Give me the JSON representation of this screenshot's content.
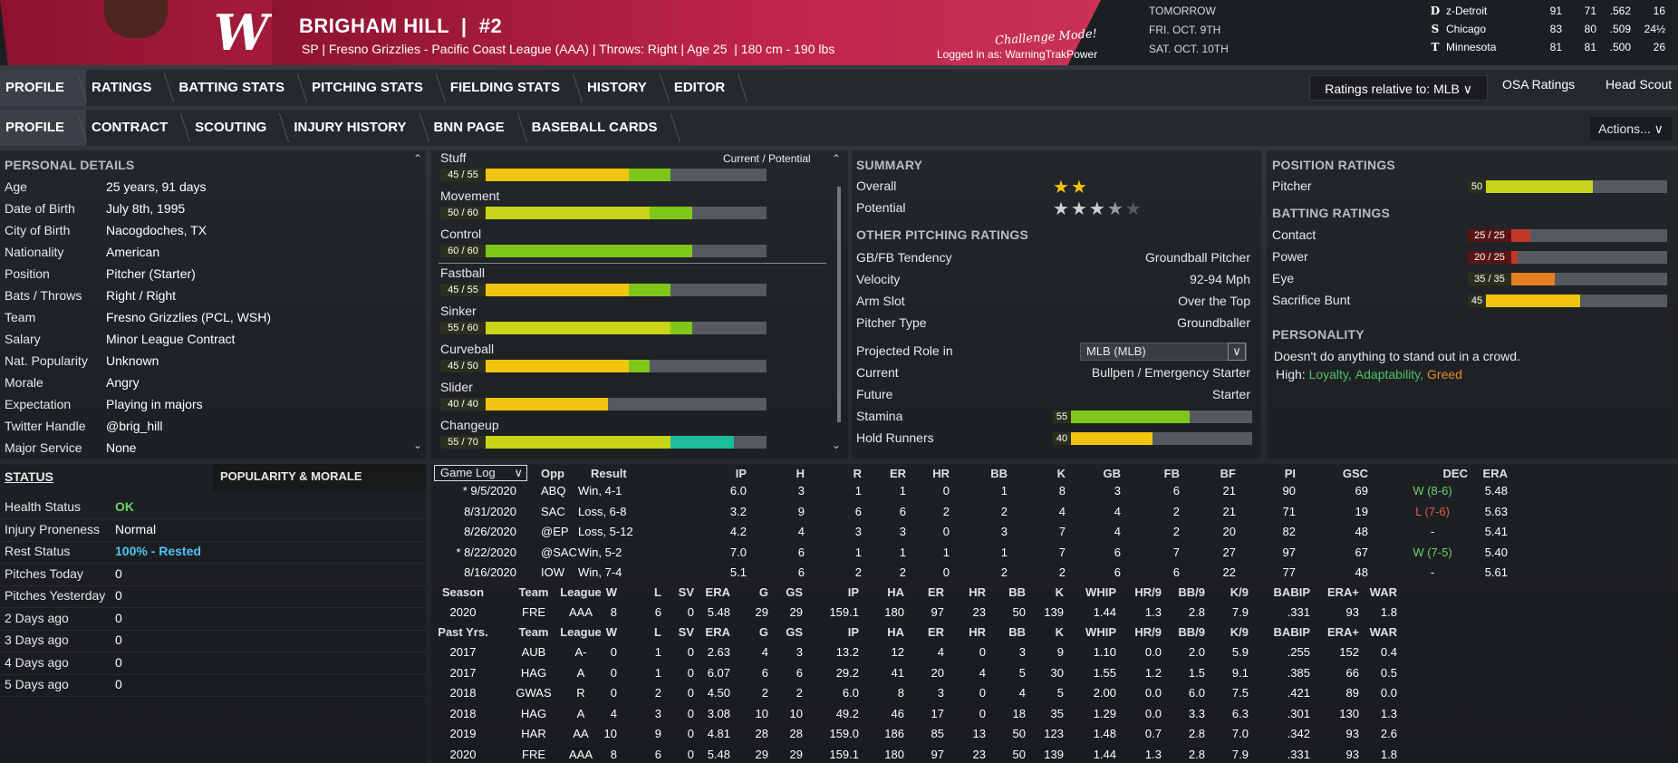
{
  "header": {
    "name": "BRIGHAM HILL  |  #2",
    "subtitle": "SP | Fresno Grizzlies - Pacific Coast League (AAA) | Throws: Right | Age 25  | 180 cm - 190 lbs",
    "challenge": "Challenge Mode!",
    "logged_in": "Logged in as: WarningTrakPower",
    "team_logo": "W",
    "dates": [
      "TOMORROW",
      "FRI. OCT. 9TH",
      "SAT. OCT. 10TH"
    ]
  },
  "standings": [
    {
      "icon": "D",
      "team": "z-Detroit",
      "w": "91",
      "l": "71",
      "pct": ".562",
      "gb": "16"
    },
    {
      "icon": "S",
      "team": "Chicago",
      "w": "83",
      "l": "80",
      "pct": ".509",
      "gb": "24½"
    },
    {
      "icon": "T",
      "team": "Minnesota",
      "w": "81",
      "l": "81",
      "pct": ".500",
      "gb": "26"
    }
  ],
  "nav1": [
    "PROFILE",
    "RATINGS",
    "BATTING STATS",
    "PITCHING STATS",
    "FIELDING STATS",
    "HISTORY",
    "EDITOR"
  ],
  "nav2": [
    "PROFILE",
    "CONTRACT",
    "SCOUTING",
    "INJURY HISTORY",
    "BNN PAGE",
    "BASEBALL CARDS"
  ],
  "ratings_relative": "Ratings relative to: MLB  ∨",
  "osa": "OSA Ratings",
  "head_scout": "Head Scout",
  "actions": "Actions...  ∨",
  "personal": {
    "title": "PERSONAL DETAILS",
    "rows": [
      [
        "Age",
        "25 years, 91 days"
      ],
      [
        "Date of Birth",
        "July 8th, 1995"
      ],
      [
        "City of Birth",
        "Nacogdoches, TX"
      ],
      [
        "Nationality",
        "American"
      ],
      [
        "Position",
        "Pitcher (Starter)"
      ],
      [
        "Bats / Throws",
        "Right / Right"
      ],
      [
        "Team",
        "Fresno Grizzlies (PCL, WSH)"
      ],
      [
        "Salary",
        "Minor League Contract"
      ],
      [
        "Nat. Popularity",
        "Unknown"
      ],
      [
        "Morale",
        "Angry"
      ],
      [
        "Expectation",
        "Playing in majors"
      ],
      [
        "Twitter Handle",
        "@brig_hill"
      ],
      [
        "Major Service",
        "None"
      ]
    ]
  },
  "pitches": {
    "header": "Current / Potential",
    "items": [
      {
        "name": "Stuff",
        "label": "45 / 55",
        "cur": 45,
        "pot": 55
      },
      {
        "name": "Movement",
        "label": "50 / 60",
        "cur": 50,
        "pot": 60
      },
      {
        "name": "Control",
        "label": "60 / 60",
        "cur": 60,
        "pot": 60
      },
      {
        "name": "Fastball",
        "label": "45 / 55",
        "cur": 45,
        "pot": 55
      },
      {
        "name": "Sinker",
        "label": "55 / 60",
        "cur": 55,
        "pot": 60
      },
      {
        "name": "Curveball",
        "label": "45 / 50",
        "cur": 45,
        "pot": 50
      },
      {
        "name": "Slider",
        "label": "40 / 40",
        "cur": 40,
        "pot": 40
      },
      {
        "name": "Changeup",
        "label": "55 / 70",
        "cur": 55,
        "pot": 70
      }
    ]
  },
  "summary": {
    "title": "SUMMARY",
    "overall_label": "Overall",
    "overall_stars": 2,
    "potential_label": "Potential",
    "potential_stars": 3.5,
    "other_title": "OTHER PITCHING RATINGS",
    "rows": [
      [
        "GB/FB Tendency",
        "Groundball Pitcher"
      ],
      [
        "Velocity",
        "92-94 Mph"
      ],
      [
        "Arm Slot",
        "Over the Top"
      ],
      [
        "Pitcher Type",
        "Groundballer"
      ]
    ],
    "proj_label": "Projected Role in",
    "proj_value": "MLB (MLB)",
    "current_label": "Current",
    "current_value": "Bullpen / Emergency Starter",
    "future_label": "Future",
    "future_value": "Starter",
    "stamina_label": "Stamina",
    "stamina": 55,
    "hold_label": "Hold Runners",
    "hold": 40
  },
  "position": {
    "title": "POSITION RATINGS",
    "pitcher_label": "Pitcher",
    "pitcher": 50,
    "batting_title": "BATTING RATINGS",
    "batting": [
      {
        "name": "Contact",
        "label": "25 / 25",
        "v": 25
      },
      {
        "name": "Power",
        "label": "20 / 25",
        "v": 20
      },
      {
        "name": "Eye",
        "label": "35 / 35",
        "v": 35
      },
      {
        "name": "Sacrifice Bunt",
        "label": "45",
        "v": 45
      }
    ],
    "personality_title": "PERSONALITY",
    "personality_text": "Doesn't do anything to stand out in a crowd.",
    "high_label": "High:",
    "traits": [
      {
        "t": "Loyalty,",
        "c": "#4fc06a"
      },
      {
        "t": "Adaptability,",
        "c": "#4fc06a"
      },
      {
        "t": "Greed",
        "c": "#e8862a"
      }
    ]
  },
  "status": {
    "title": "STATUS",
    "pop_tab": "POPULARITY & MORALE",
    "rows": [
      [
        "Health Status",
        "OK",
        "#6fd26b"
      ],
      [
        "Injury Proneness",
        "Normal",
        "#fff"
      ],
      [
        "Rest Status",
        "100% - Rested",
        "#4fc3f7"
      ],
      [
        "Pitches Today",
        "0",
        "#fff"
      ],
      [
        "Pitches Yesterday",
        "0",
        "#fff"
      ],
      [
        "2 Days ago",
        "0",
        "#fff"
      ],
      [
        "3 Days ago",
        "0",
        "#fff"
      ],
      [
        "4 Days ago",
        "0",
        "#fff"
      ],
      [
        "5 Days ago",
        "0",
        "#fff"
      ]
    ]
  },
  "gamelog": {
    "select": "Game Log",
    "headers": [
      "Opp",
      "Result",
      "IP",
      "H",
      "R",
      "ER",
      "HR",
      "BB",
      "K",
      "GB",
      "FB",
      "BF",
      "PI",
      "GSC",
      "DEC",
      "ERA"
    ],
    "rows": [
      [
        "* 9/5/2020",
        "ABQ",
        "Win, 4-1",
        "6.0",
        "3",
        "1",
        "1",
        "0",
        "1",
        "8",
        "3",
        "6",
        "21",
        "90",
        "69",
        "W (8-6)",
        "5.48"
      ],
      [
        "8/31/2020",
        "SAC",
        "Loss, 6-8",
        "3.2",
        "9",
        "6",
        "6",
        "2",
        "2",
        "4",
        "4",
        "2",
        "21",
        "71",
        "19",
        "L (7-6)",
        "5.63"
      ],
      [
        "8/26/2020",
        "@EP",
        "Loss, 5-12",
        "4.2",
        "4",
        "3",
        "3",
        "0",
        "3",
        "7",
        "4",
        "2",
        "20",
        "82",
        "48",
        "-",
        "5.41"
      ],
      [
        "* 8/22/2020",
        "@SAC",
        "Win, 5-2",
        "7.0",
        "6",
        "1",
        "1",
        "1",
        "1",
        "7",
        "6",
        "7",
        "27",
        "97",
        "67",
        "W (7-5)",
        "5.40"
      ],
      [
        "8/16/2020",
        "IOW",
        "Win, 7-4",
        "5.1",
        "6",
        "2",
        "2",
        "0",
        "2",
        "2",
        "6",
        "6",
        "22",
        "77",
        "48",
        "-",
        "5.61"
      ]
    ]
  },
  "season": {
    "headers": [
      "Season",
      "Team",
      "League",
      "W",
      "L",
      "SV",
      "ERA",
      "G",
      "GS",
      "IP",
      "HA",
      "ER",
      "HR",
      "BB",
      "K",
      "WHIP",
      "HR/9",
      "BB/9",
      "K/9",
      "BABIP",
      "ERA+",
      "WAR"
    ],
    "rows": [
      [
        "2020",
        "FRE",
        "AAA",
        "8",
        "6",
        "0",
        "5.48",
        "29",
        "29",
        "159.1",
        "180",
        "97",
        "23",
        "50",
        "139",
        "1.44",
        "1.3",
        "2.8",
        "7.9",
        ".331",
        "93",
        "1.8"
      ]
    ]
  },
  "past": {
    "headers": [
      "Past Yrs.",
      "Team",
      "League",
      "W",
      "L",
      "SV",
      "ERA",
      "G",
      "GS",
      "IP",
      "HA",
      "ER",
      "HR",
      "BB",
      "K",
      "WHIP",
      "HR/9",
      "BB/9",
      "K/9",
      "BABIP",
      "ERA+",
      "WAR"
    ],
    "rows": [
      [
        "2017",
        "AUB",
        "A-",
        "0",
        "1",
        "0",
        "2.63",
        "4",
        "3",
        "13.2",
        "12",
        "4",
        "0",
        "3",
        "9",
        "1.10",
        "0.0",
        "2.0",
        "5.9",
        ".255",
        "152",
        "0.4"
      ],
      [
        "2017",
        "HAG",
        "A",
        "0",
        "1",
        "0",
        "6.07",
        "6",
        "6",
        "29.2",
        "41",
        "20",
        "4",
        "5",
        "30",
        "1.55",
        "1.2",
        "1.5",
        "9.1",
        ".385",
        "66",
        "0.5"
      ],
      [
        "2018",
        "GWAS",
        "R",
        "0",
        "2",
        "0",
        "4.50",
        "2",
        "2",
        "6.0",
        "8",
        "3",
        "0",
        "4",
        "5",
        "2.00",
        "0.0",
        "6.0",
        "7.5",
        ".421",
        "89",
        "0.0"
      ],
      [
        "2018",
        "HAG",
        "A",
        "4",
        "3",
        "0",
        "3.08",
        "10",
        "10",
        "49.2",
        "46",
        "17",
        "0",
        "18",
        "35",
        "1.29",
        "0.0",
        "3.3",
        "6.3",
        ".301",
        "130",
        "1.3"
      ],
      [
        "2019",
        "HAR",
        "AA",
        "10",
        "9",
        "0",
        "4.81",
        "28",
        "28",
        "159.0",
        "186",
        "85",
        "13",
        "50",
        "123",
        "1.48",
        "0.7",
        "2.8",
        "7.0",
        ".342",
        "93",
        "2.6"
      ],
      [
        "2020",
        "FRE",
        "AAA",
        "8",
        "6",
        "0",
        "5.48",
        "29",
        "29",
        "159.1",
        "180",
        "97",
        "23",
        "50",
        "139",
        "1.44",
        "1.3",
        "2.8",
        "7.9",
        ".331",
        "93",
        "1.8"
      ]
    ]
  }
}
